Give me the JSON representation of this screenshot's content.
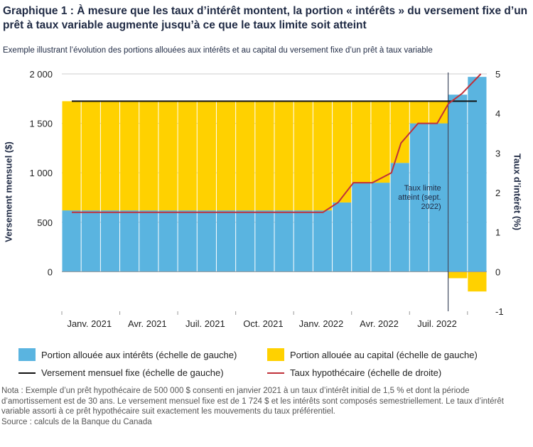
{
  "title": "Graphique 1 : À mesure que les taux d’intérêt montent, la portion « intérêts » du versement fixe d’un prêt à taux variable augmente jusqu’à ce que le taux limite soit atteint",
  "subtitle": "Exemple illustrant l’évolution des portions allouées aux intérêts et au capital du versement fixe d’un prêt à taux variable",
  "legend": {
    "interest": "Portion allouée aux intérêts (échelle de gauche)",
    "capital": "Portion allouée au capital (échelle de gauche)",
    "fixed": "Versement mensuel fixe (échelle de gauche)",
    "rate": "Taux hypothécaire (échelle de droite)"
  },
  "notes": {
    "note": "Nota : Exemple d’un prêt hypothécaire de 500 000 $ consenti en janvier 2021 à un taux d’intérêt initial de 1,5 % et dont la période d’amortissement est de 30 ans. Le versement mensuel fixe est de 1 724 $ et les intérêts sont composés semestriellement. Le taux d’intérêt variable assorti à ce prêt hypothécaire suit exactement les mouvements du taux préférentiel.",
    "source": "Source : calculs de la Banque du Canada"
  },
  "colors": {
    "interest": "#5ab4e0",
    "capital": "#ffd100",
    "fixed": "#111111",
    "rate": "#c0313a",
    "grid": "#cccccc",
    "text": "#1f2a44"
  },
  "chart_data": {
    "type": "bar",
    "stacked": true,
    "ylabel": "Versement mensuel ($)",
    "y2label": "Taux d’intérêt (%)",
    "ylim": [
      -400,
      2000
    ],
    "y2lim": [
      -1,
      5
    ],
    "yticks": [
      "2 000",
      "1 500",
      "1 000",
      "500",
      "0"
    ],
    "ytick_values": [
      2000,
      1500,
      1000,
      500,
      0
    ],
    "y2ticks": [
      "5",
      "4",
      "3",
      "2",
      "1",
      "0",
      "-1"
    ],
    "y2tick_values": [
      5,
      4,
      3,
      2,
      1,
      0,
      -1
    ],
    "xtick_labels": [
      "Janv. 2021",
      "Avr. 2021",
      "Juil. 2021",
      "Oct. 2021",
      "Janv. 2022",
      "Avr. 2022",
      "Juil. 2022"
    ],
    "xtick_months": [
      0,
      3,
      6,
      9,
      12,
      15,
      18
    ],
    "months": 22,
    "series": [
      {
        "name": "Portion allouée aux intérêts (échelle de gauche)",
        "values": [
          620,
          620,
          620,
          620,
          620,
          620,
          620,
          620,
          620,
          620,
          620,
          620,
          620,
          620,
          700,
          900,
          900,
          1100,
          1500,
          1500,
          1790,
          1970
        ]
      },
      {
        "name": "Portion allouée au capital (échelle de gauche)",
        "values": [
          1104,
          1104,
          1104,
          1104,
          1104,
          1104,
          1104,
          1104,
          1104,
          1104,
          1104,
          1104,
          1104,
          1104,
          1024,
          824,
          824,
          624,
          224,
          224,
          -66,
          -200
        ]
      },
      {
        "name": "Versement mensuel fixe (échelle de gauche)",
        "values": [
          1724,
          1724,
          1724,
          1724,
          1724,
          1724,
          1724,
          1724,
          1724,
          1724,
          1724,
          1724,
          1724,
          1724,
          1724,
          1724,
          1724,
          1724,
          1724,
          1724,
          1724,
          1724
        ]
      },
      {
        "name": "Taux hypothécaire (échelle de droite)",
        "x": [
          0,
          13.2,
          14,
          14.8,
          15.8,
          16.8,
          17.3,
          18.2,
          19.2,
          19.8,
          20.5,
          21.5
        ],
        "values": [
          1.5,
          1.5,
          1.75,
          2.25,
          2.25,
          2.5,
          3.25,
          3.75,
          3.75,
          4.25,
          4.5,
          5.0
        ]
      }
    ],
    "annotation": {
      "text": [
        "Taux limite",
        "atteint (sept.",
        "2022)"
      ],
      "x_month": 20
    }
  }
}
